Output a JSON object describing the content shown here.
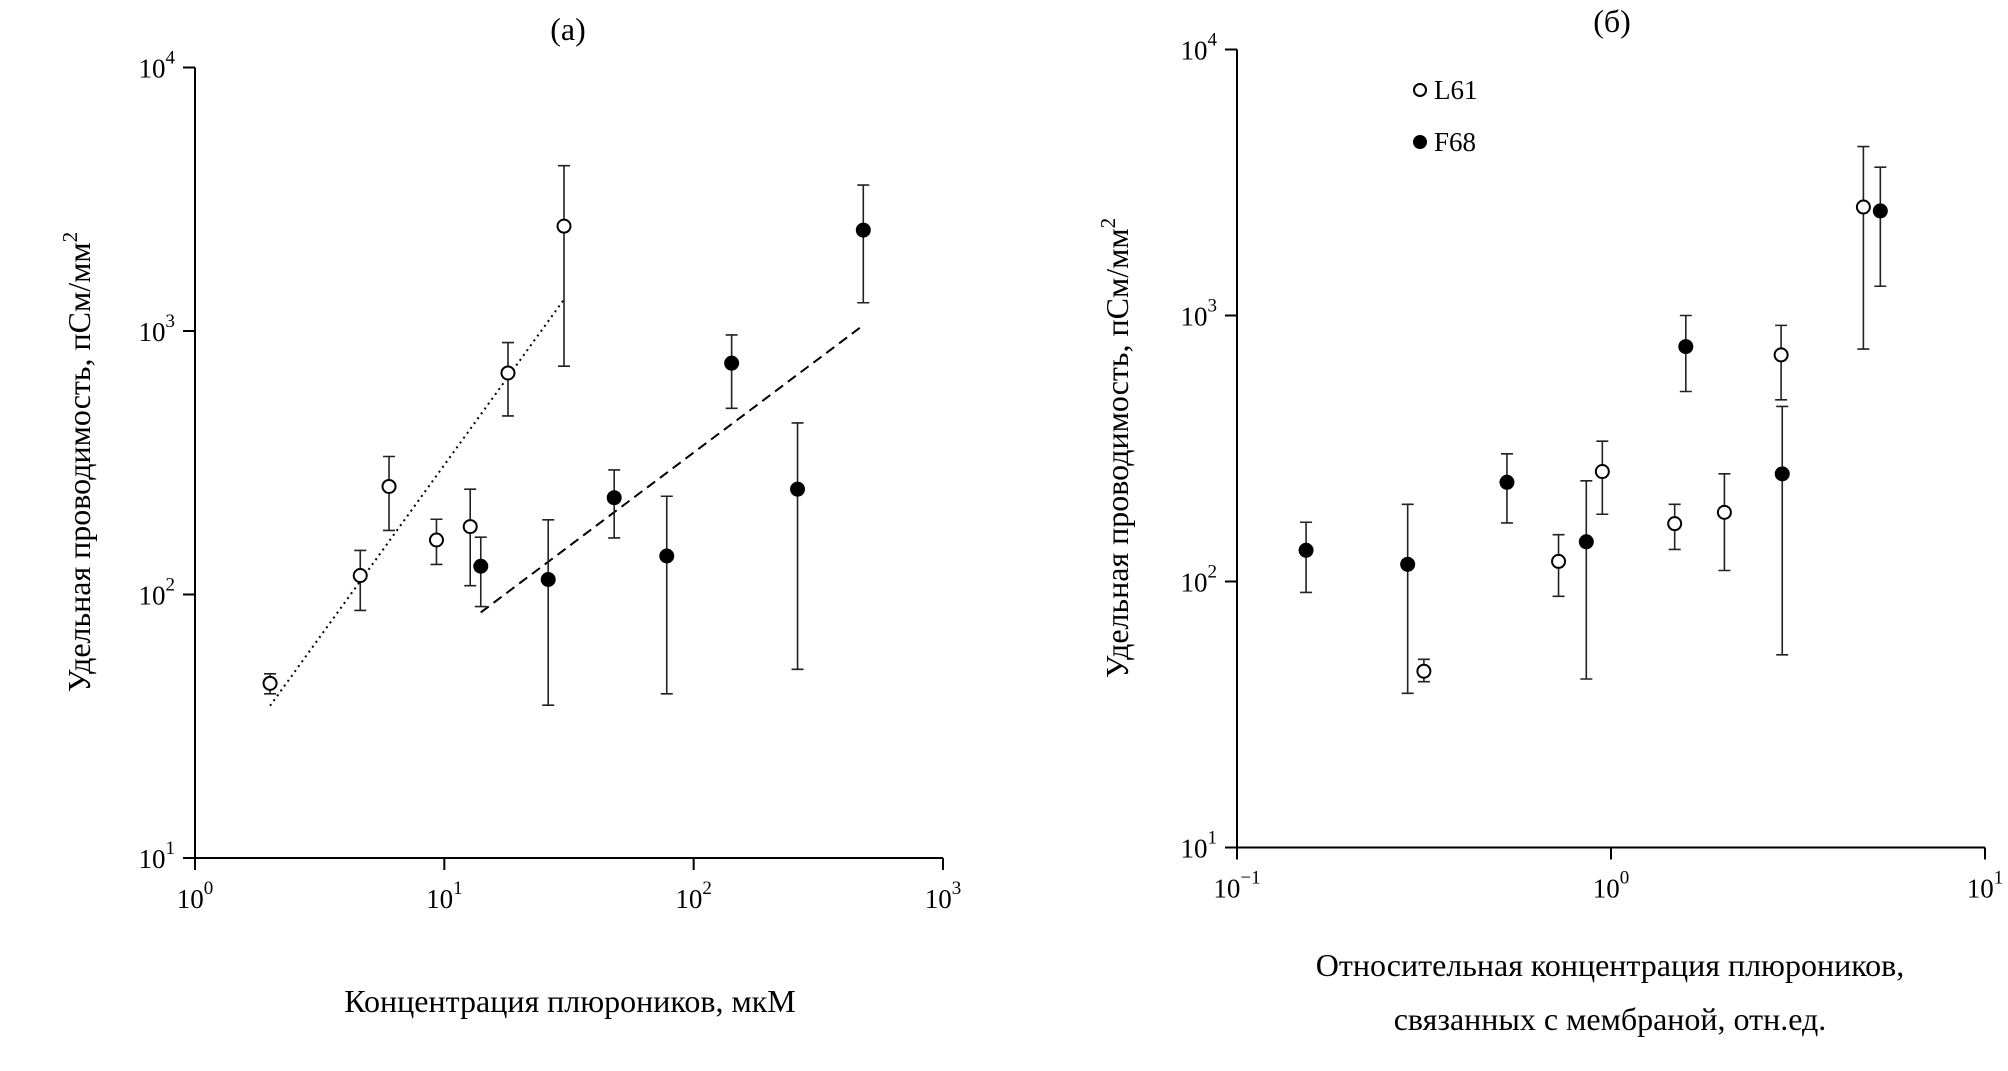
{
  "chart_data": [
    {
      "type": "scatter",
      "title": "(a)",
      "xlabel": "Концентрация плюроников, мкМ",
      "ylabel": "Удельная проводимость, пСм/мм",
      "ylabel_sup": "2",
      "xscale": "log",
      "yscale": "log",
      "xlim": [
        1,
        1000
      ],
      "ylim": [
        10,
        10000
      ],
      "xticks": [
        {
          "base": "10",
          "exp": "0"
        },
        {
          "base": "10",
          "exp": "1"
        },
        {
          "base": "10",
          "exp": "2"
        },
        {
          "base": "10",
          "exp": "3"
        }
      ],
      "yticks": [
        {
          "base": "10",
          "exp": "1"
        },
        {
          "base": "10",
          "exp": "2"
        },
        {
          "base": "10",
          "exp": "3"
        },
        {
          "base": "10",
          "exp": "4"
        }
      ],
      "grid": false,
      "series": [
        {
          "marker": "open-circle",
          "points": [
            {
              "x": 2.0,
              "y": 46,
              "lo": 42,
              "hi": 50
            },
            {
              "x": 4.6,
              "y": 118,
              "lo": 87,
              "hi": 147
            },
            {
              "x": 6.0,
              "y": 257,
              "lo": 175,
              "hi": 334
            },
            {
              "x": 9.3,
              "y": 161,
              "lo": 130,
              "hi": 193
            },
            {
              "x": 12.7,
              "y": 181,
              "lo": 108,
              "hi": 251
            },
            {
              "x": 18.0,
              "y": 693,
              "lo": 476,
              "hi": 904
            },
            {
              "x": 30.2,
              "y": 2500,
              "lo": 735,
              "hi": 4240
            }
          ]
        },
        {
          "marker": "filled-circle",
          "points": [
            {
              "x": 14.0,
              "y": 128,
              "lo": 90,
              "hi": 165
            },
            {
              "x": 26.1,
              "y": 114,
              "lo": 38,
              "hi": 192
            },
            {
              "x": 48,
              "y": 233,
              "lo": 164,
              "hi": 297
            },
            {
              "x": 78,
              "y": 140,
              "lo": 42,
              "hi": 236
            },
            {
              "x": 142,
              "y": 755,
              "lo": 509,
              "hi": 966
            },
            {
              "x": 261,
              "y": 251,
              "lo": 52,
              "hi": 448
            },
            {
              "x": 479,
              "y": 2415,
              "lo": 1280,
              "hi": 3580
            }
          ]
        }
      ],
      "fit_lines": [
        {
          "style": "dotted",
          "x": [
            2.0,
            30.2
          ],
          "y": [
            37.8,
            1318
          ]
        },
        {
          "style": "dashed",
          "x": [
            14.0,
            479
          ],
          "y": [
            85.5,
            1052
          ]
        }
      ]
    },
    {
      "type": "scatter",
      "title": "(б)",
      "xlabel_lines": [
        "Относительная концентрация плюроников,",
        "связанных с мембраной, отн.ед."
      ],
      "ylabel": "Удельная проводимость, пСм/мм",
      "ylabel_sup": "2",
      "xscale": "log",
      "yscale": "log",
      "xlim": [
        0.1,
        10
      ],
      "ylim": [
        10,
        10000
      ],
      "xticks": [
        {
          "base": "10",
          "exp": "−1"
        },
        {
          "base": "10",
          "exp": "0"
        },
        {
          "base": "10",
          "exp": "1"
        }
      ],
      "yticks": [
        {
          "base": "10",
          "exp": "1"
        },
        {
          "base": "10",
          "exp": "2"
        },
        {
          "base": "10",
          "exp": "3"
        },
        {
          "base": "10",
          "exp": "4"
        }
      ],
      "grid": false,
      "legend_position": "top-left",
      "series": [
        {
          "name": "L61",
          "marker": "open-circle",
          "points": [
            {
              "x": 0.316,
              "y": 46,
              "lo": 42,
              "hi": 51
            },
            {
              "x": 0.724,
              "y": 119,
              "lo": 88,
              "hi": 150
            },
            {
              "x": 0.948,
              "y": 259,
              "lo": 179,
              "hi": 337
            },
            {
              "x": 1.48,
              "y": 165,
              "lo": 132,
              "hi": 195
            },
            {
              "x": 2.01,
              "y": 182,
              "lo": 110,
              "hi": 254
            },
            {
              "x": 2.85,
              "y": 711,
              "lo": 482,
              "hi": 918
            },
            {
              "x": 4.73,
              "y": 2557,
              "lo": 748,
              "hi": 4315
            }
          ]
        },
        {
          "name": "F68",
          "marker": "filled-circle",
          "points": [
            {
              "x": 0.153,
              "y": 131,
              "lo": 91,
              "hi": 167
            },
            {
              "x": 0.286,
              "y": 116,
              "lo": 38,
              "hi": 195
            },
            {
              "x": 0.527,
              "y": 236,
              "lo": 166,
              "hi": 302
            },
            {
              "x": 0.859,
              "y": 141,
              "lo": 43,
              "hi": 239
            },
            {
              "x": 1.585,
              "y": 764,
              "lo": 518,
              "hi": 1000
            },
            {
              "x": 2.87,
              "y": 254,
              "lo": 53,
              "hi": 455
            },
            {
              "x": 5.25,
              "y": 2473,
              "lo": 1288,
              "hi": 3610
            }
          ]
        }
      ]
    }
  ]
}
